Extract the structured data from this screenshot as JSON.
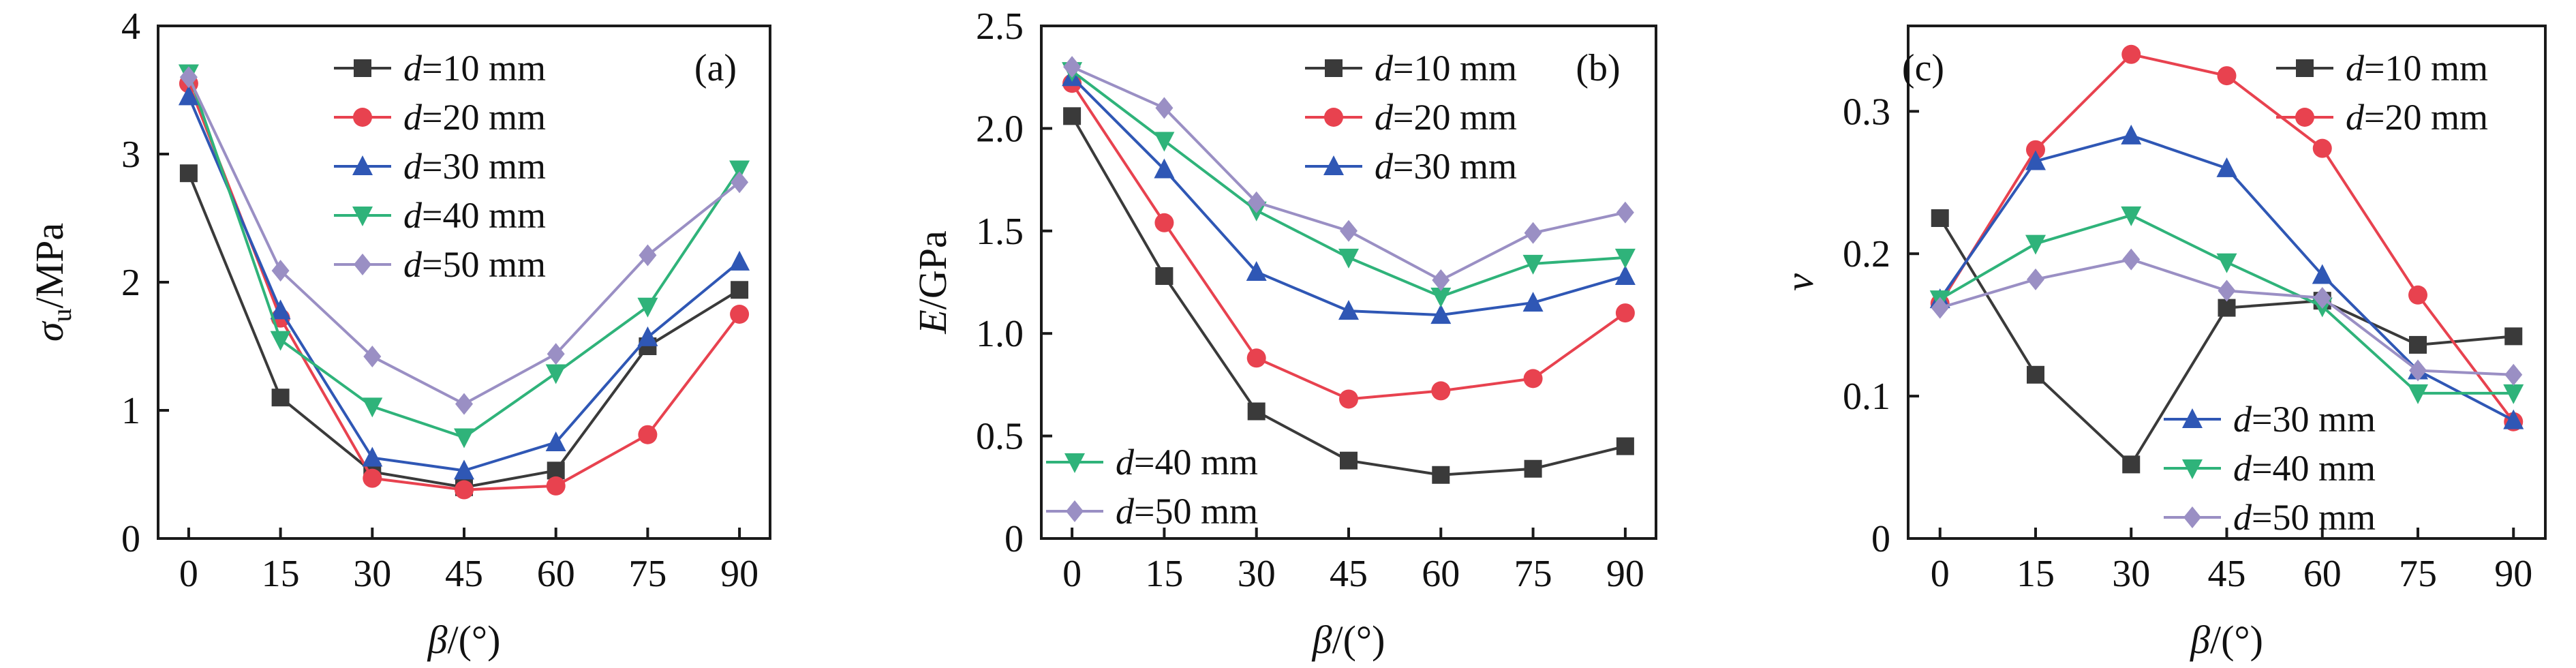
{
  "figure": {
    "description_panels": [
      "(a)",
      "(b)",
      "(c)"
    ]
  },
  "colors": {
    "d10": "#3a3a3a",
    "d20": "#e8424f",
    "d30": "#2f57b5",
    "d40": "#2fb37a",
    "d50": "#9a8fc4"
  },
  "chart_data": [
    {
      "type": "line",
      "panel": "(a)",
      "xlabel_main": "β",
      "xlabel_unit": "/(°)",
      "ylabel_main": "σ",
      "ylabel_sub": "u",
      "ylabel_unit": "/MPa",
      "x": [
        0,
        15,
        30,
        45,
        60,
        75,
        90
      ],
      "xticks": [
        0,
        15,
        30,
        45,
        60,
        75,
        90
      ],
      "xlim": [
        -5,
        95
      ],
      "ylim": [
        0,
        4
      ],
      "yticks": [
        0,
        1,
        2,
        3,
        4
      ],
      "ytick_labels": [
        "0",
        "1",
        "2",
        "3",
        "4"
      ],
      "legend_position": "top-right",
      "series": [
        {
          "key": "d10",
          "prefix": "d",
          "label": "=10 mm",
          "marker": "square",
          "values": [
            2.85,
            1.1,
            0.52,
            0.4,
            0.53,
            1.5,
            1.94
          ]
        },
        {
          "key": "d20",
          "prefix": "d",
          "label": "=20 mm",
          "marker": "circle",
          "values": [
            3.55,
            1.72,
            0.47,
            0.38,
            0.41,
            0.81,
            1.75
          ]
        },
        {
          "key": "d30",
          "prefix": "d",
          "label": "=30 mm",
          "marker": "triangle-up",
          "values": [
            3.45,
            1.78,
            0.63,
            0.53,
            0.75,
            1.57,
            2.16
          ]
        },
        {
          "key": "d40",
          "prefix": "d",
          "label": "=40 mm",
          "marker": "triangle-down",
          "values": [
            3.63,
            1.55,
            1.03,
            0.79,
            1.29,
            1.81,
            2.88
          ]
        },
        {
          "key": "d50",
          "prefix": "d",
          "label": "=50 mm",
          "marker": "diamond",
          "values": [
            3.6,
            2.09,
            1.42,
            1.05,
            1.44,
            2.21,
            2.78
          ]
        }
      ]
    },
    {
      "type": "line",
      "panel": "(b)",
      "xlabel_main": "β",
      "xlabel_unit": "/(°)",
      "ylabel_main": "E",
      "ylabel_sub": "",
      "ylabel_unit": "/GPa",
      "x": [
        0,
        15,
        30,
        45,
        60,
        75,
        90
      ],
      "xticks": [
        0,
        15,
        30,
        45,
        60,
        75,
        90
      ],
      "xlim": [
        -5,
        95
      ],
      "ylim": [
        0,
        2.5
      ],
      "yticks": [
        0,
        0.5,
        1.0,
        1.5,
        2.0,
        2.5
      ],
      "ytick_labels": [
        "0",
        "0.5",
        "1.0",
        "1.5",
        "2.0",
        "2.5"
      ],
      "legend_position": "split: top-right (d=10,20,30), bottom-left (d=40,50)",
      "series": [
        {
          "key": "d10",
          "prefix": "d",
          "label": "=10 mm",
          "marker": "square",
          "values": [
            2.06,
            1.28,
            0.62,
            0.38,
            0.31,
            0.34,
            0.45
          ]
        },
        {
          "key": "d20",
          "prefix": "d",
          "label": "=20 mm",
          "marker": "circle",
          "values": [
            2.22,
            1.54,
            0.88,
            0.68,
            0.72,
            0.78,
            1.1
          ]
        },
        {
          "key": "d30",
          "prefix": "d",
          "label": "=30 mm",
          "marker": "triangle-up",
          "values": [
            2.25,
            1.8,
            1.3,
            1.11,
            1.09,
            1.15,
            1.28
          ]
        },
        {
          "key": "d40",
          "prefix": "d",
          "label": "=40 mm",
          "marker": "triangle-down",
          "values": [
            2.28,
            1.94,
            1.6,
            1.37,
            1.18,
            1.34,
            1.37
          ]
        },
        {
          "key": "d50",
          "prefix": "d",
          "label": "=50 mm",
          "marker": "diamond",
          "values": [
            2.3,
            2.1,
            1.64,
            1.5,
            1.26,
            1.49,
            1.59
          ]
        }
      ]
    },
    {
      "type": "line",
      "panel": "(c)",
      "xlabel_main": "β",
      "xlabel_unit": "/(°)",
      "ylabel_main": "ν",
      "ylabel_sub": "",
      "ylabel_unit": "",
      "x": [
        0,
        15,
        30,
        45,
        60,
        75,
        90
      ],
      "xticks": [
        0,
        15,
        30,
        45,
        60,
        75,
        90
      ],
      "xlim": [
        -5,
        95
      ],
      "ylim": [
        0,
        0.36
      ],
      "yticks": [
        0,
        0.1,
        0.2,
        0.3
      ],
      "ytick_labels": [
        "0",
        "0.1",
        "0.2",
        "0.3"
      ],
      "legend_position": "split: top-right (d=10,20), bottom-center (d=30,40,50)",
      "series": [
        {
          "key": "d10",
          "prefix": "d",
          "label": "=10 mm",
          "marker": "square",
          "values": [
            0.225,
            0.115,
            0.052,
            0.162,
            0.167,
            0.136,
            0.142
          ]
        },
        {
          "key": "d20",
          "prefix": "d",
          "label": "=20 mm",
          "marker": "circle",
          "values": [
            0.165,
            0.273,
            0.34,
            0.325,
            0.274,
            0.171,
            0.082
          ]
        },
        {
          "key": "d30",
          "prefix": "d",
          "label": "=30 mm",
          "marker": "triangle-up",
          "values": [
            0.168,
            0.265,
            0.283,
            0.26,
            0.185,
            0.118,
            0.083
          ]
        },
        {
          "key": "d40",
          "prefix": "d",
          "label": "=40 mm",
          "marker": "triangle-down",
          "values": [
            0.168,
            0.207,
            0.227,
            0.194,
            0.163,
            0.102,
            0.102
          ]
        },
        {
          "key": "d50",
          "prefix": "d",
          "label": "=50 mm",
          "marker": "diamond",
          "values": [
            0.162,
            0.182,
            0.196,
            0.174,
            0.169,
            0.118,
            0.115
          ]
        }
      ]
    }
  ]
}
